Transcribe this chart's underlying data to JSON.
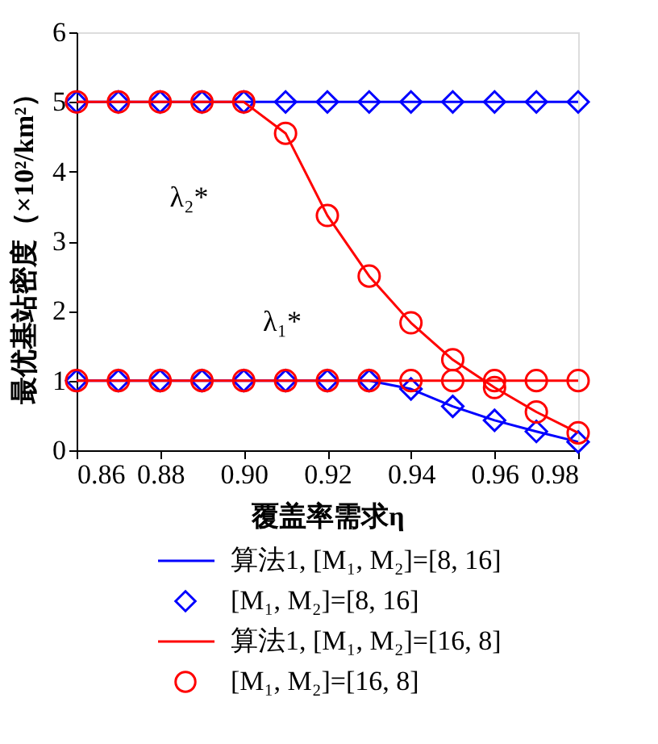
{
  "chart_data": {
    "type": "line",
    "xlabel": "覆盖率需求η",
    "ylabel": "最优基站密度（×10²/km²）",
    "x": [
      0.86,
      0.87,
      0.88,
      0.89,
      0.9,
      0.91,
      0.92,
      0.93,
      0.94,
      0.95,
      0.96,
      0.97,
      0.98
    ],
    "series": [
      {
        "name": "算法1, [M₁, M₂]=[8, 16]",
        "color": "#0000ff",
        "values": [
          5,
          5,
          5,
          5,
          5,
          5,
          5,
          5,
          5,
          5,
          5,
          5,
          5
        ]
      },
      {
        "color": "#0000ff",
        "values": [
          1,
          1,
          1,
          1,
          1,
          1,
          1,
          1,
          0.88,
          0.63,
          0.43,
          0.27,
          0.12
        ]
      },
      {
        "name": "[M₁, M₂]=[8, 16]",
        "type": "scatter",
        "marker": "diamond",
        "color": "#0000ff",
        "values": [
          5,
          5,
          5,
          5,
          5,
          5,
          5,
          5,
          5,
          5,
          5,
          5,
          5
        ]
      },
      {
        "type": "scatter",
        "marker": "diamond",
        "color": "#0000ff",
        "values": [
          1,
          1,
          1,
          1,
          1,
          1,
          1,
          1,
          0.88,
          0.63,
          0.43,
          0.27,
          0.12
        ]
      },
      {
        "name": "算法1, [M₁, M₂]=[16, 8]",
        "color": "#ff0000",
        "values": [
          5,
          5,
          5,
          5,
          5,
          4.55,
          3.37,
          2.5,
          1.83,
          1.3,
          0.9,
          0.55,
          0.25
        ]
      },
      {
        "color": "#ff0000",
        "values": [
          1,
          1,
          1,
          1,
          1,
          1,
          1,
          1,
          1,
          1,
          1,
          1,
          1
        ]
      },
      {
        "name": "[M₁, M₂]=[16, 8]",
        "type": "scatter",
        "marker": "circle",
        "color": "#ff0000",
        "values": [
          5,
          5,
          5,
          5,
          5,
          4.55,
          3.37,
          2.5,
          1.83,
          1.3,
          0.9,
          0.55,
          0.25
        ]
      },
      {
        "type": "scatter",
        "marker": "circle",
        "color": "#ff0000",
        "values": [
          1,
          1,
          1,
          1,
          1,
          1,
          1,
          1,
          1,
          1,
          1,
          1,
          1
        ]
      }
    ],
    "xlim": [
      0.86,
      0.98
    ],
    "xticks": [
      0.86,
      0.88,
      {
        "value": 0.9,
        "label": "0.90"
      },
      0.92,
      0.94,
      0.96,
      0.98
    ],
    "ylim": [
      0,
      6
    ],
    "yticks": [
      0,
      1,
      2,
      3,
      4,
      5,
      6
    ],
    "annotations": [
      {
        "text": "λ₂*",
        "x": 0.89,
        "y": 5
      },
      {
        "text": "λ₁*",
        "x": 0.92,
        "y": 1
      }
    ],
    "grid": false,
    "legend": "bottom"
  }
}
